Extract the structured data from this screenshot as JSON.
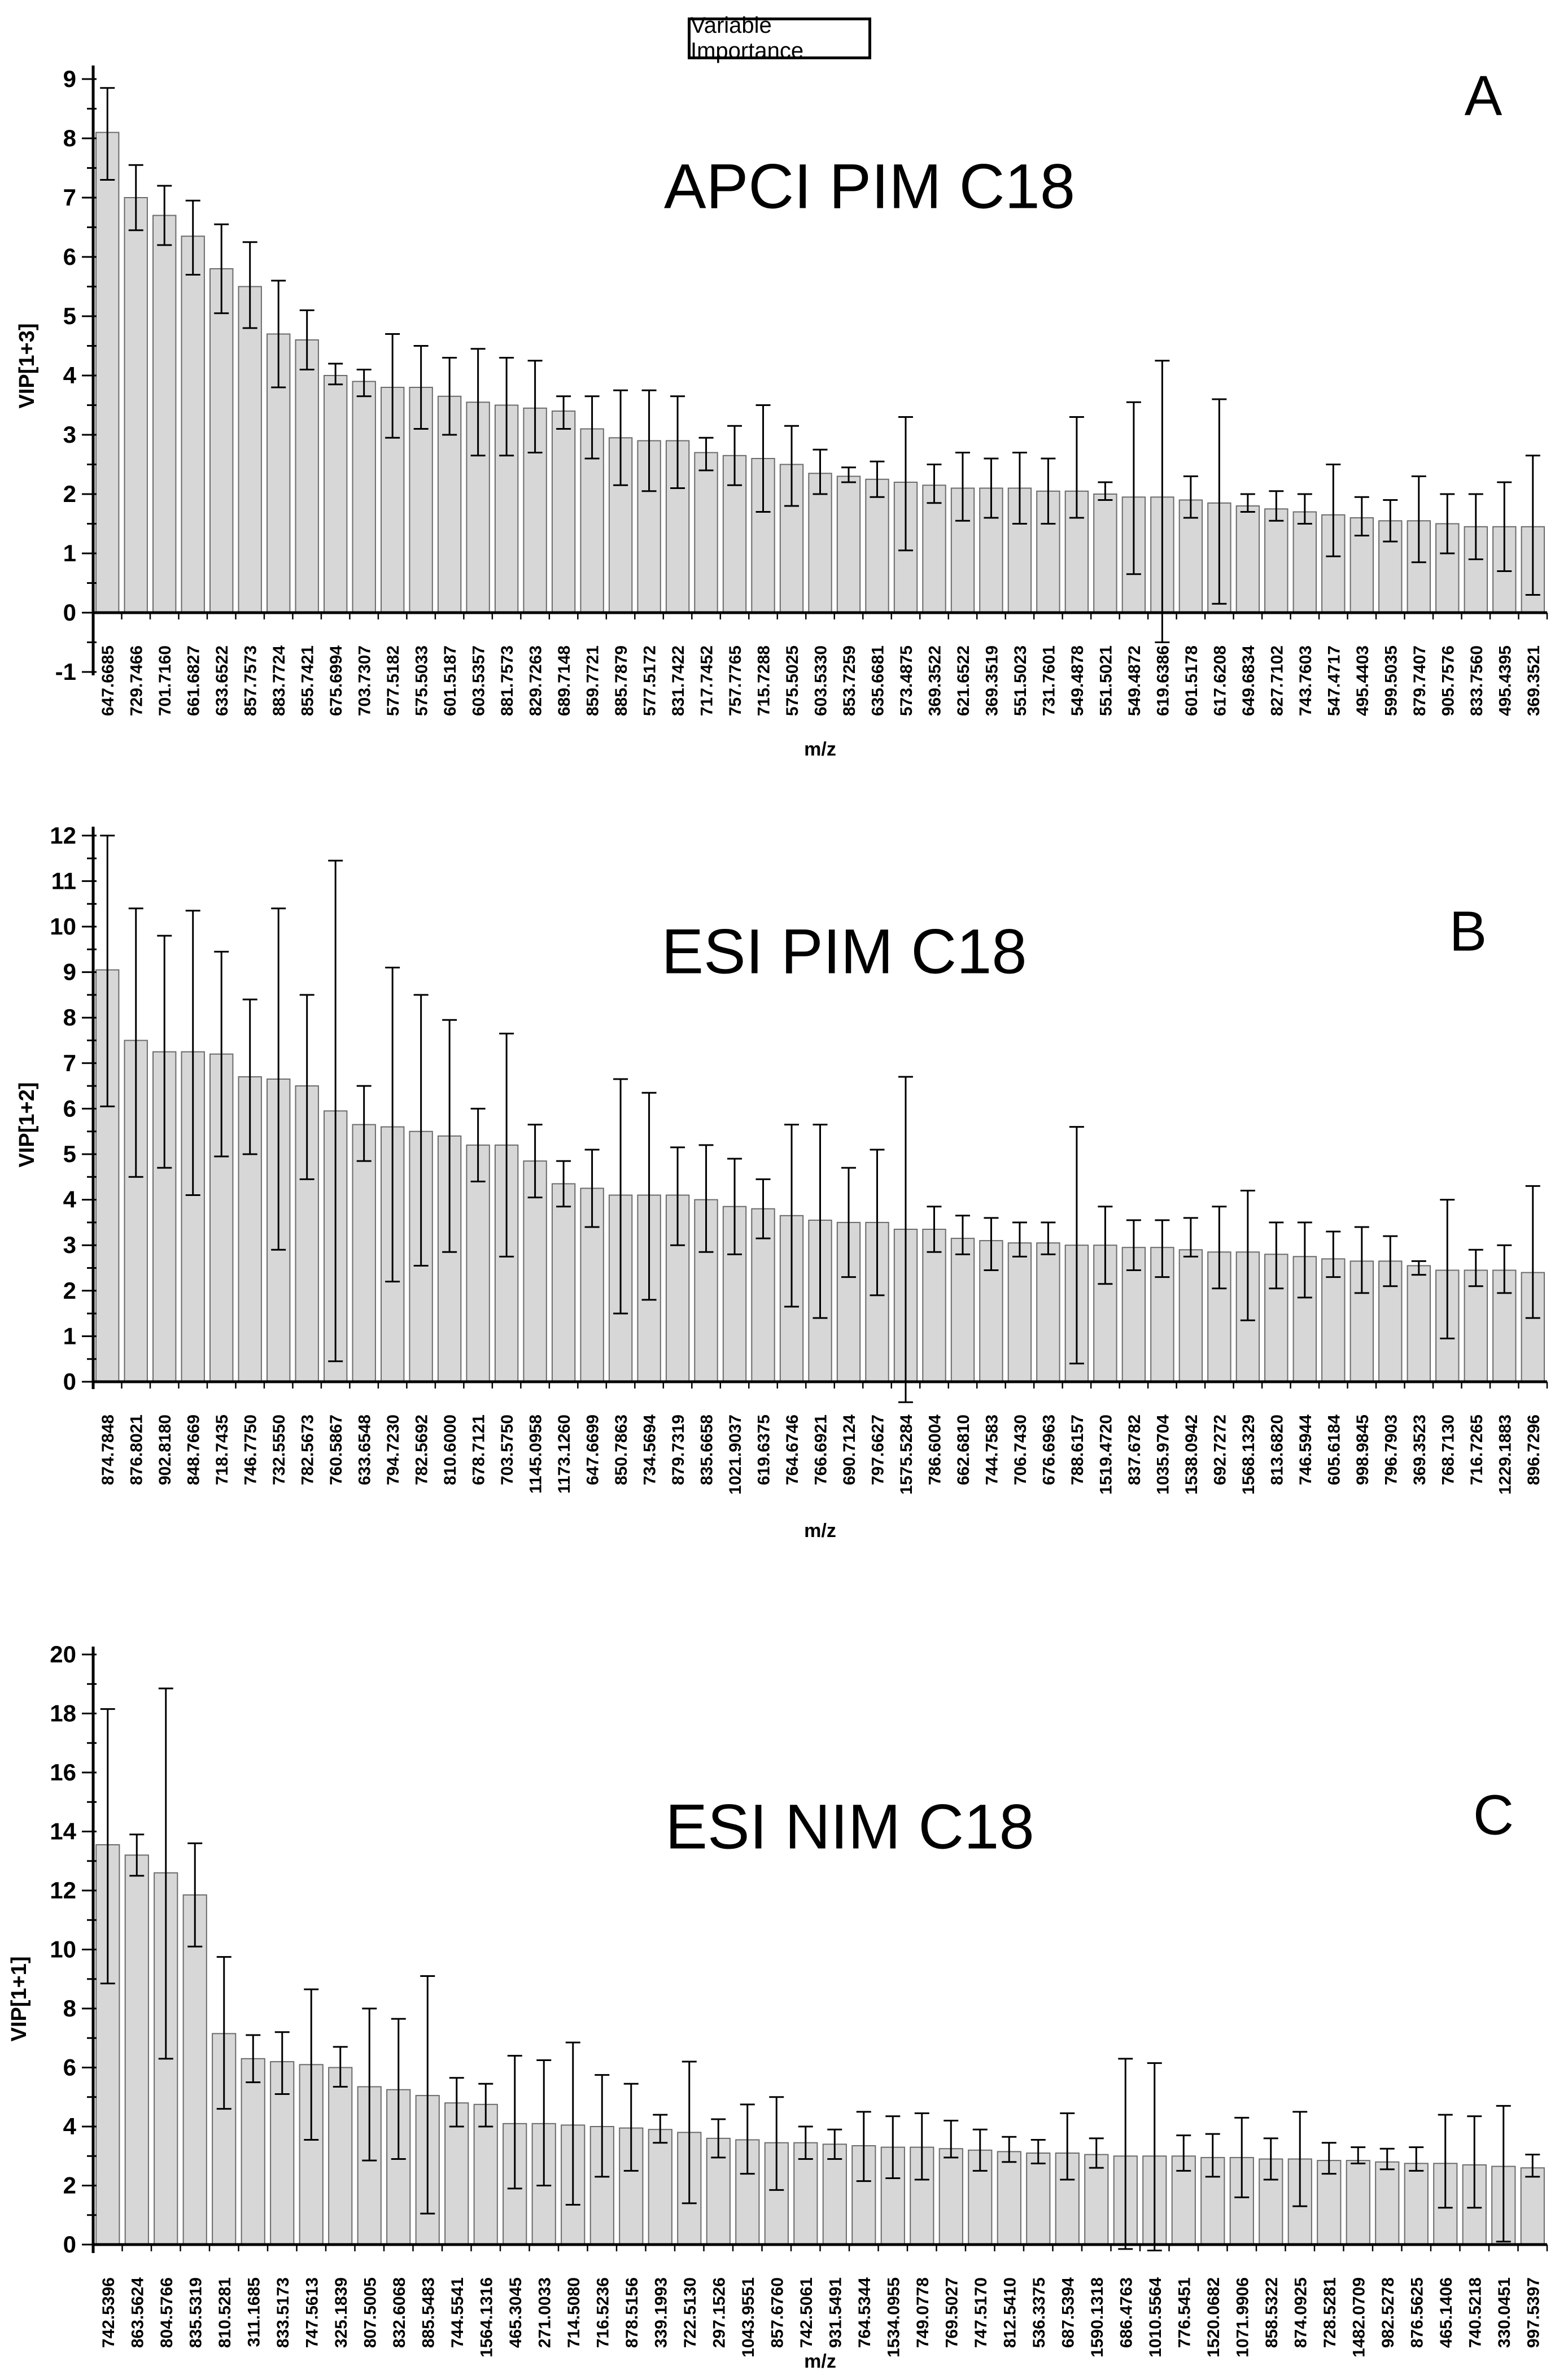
{
  "figure": {
    "title_box": "Variable Importance",
    "xlabel": "m/z",
    "bar_fill": "#d7d7d7",
    "bar_stroke": "#6b6b6b",
    "axis_color": "#000000"
  },
  "chart_data": [
    {
      "type": "bar",
      "panel": "A",
      "title": "APCI PIM C18",
      "ylabel": "VIP[1+3]",
      "xlabel": "m/z",
      "ylim": [
        -1,
        9
      ],
      "grid": false,
      "categories": [
        "647.6685",
        "729.7466",
        "701.7160",
        "661.6827",
        "633.6522",
        "857.7573",
        "883.7724",
        "855.7421",
        "675.6994",
        "703.7307",
        "577.5182",
        "575.5033",
        "601.5187",
        "603.5357",
        "881.7573",
        "829.7263",
        "689.7148",
        "859.7721",
        "885.7879",
        "577.5172",
        "831.7422",
        "717.7452",
        "757.7765",
        "715.7288",
        "575.5025",
        "603.5330",
        "853.7259",
        "635.6681",
        "573.4875",
        "369.3522",
        "621.6522",
        "369.3519",
        "551.5023",
        "731.7601",
        "549.4878",
        "551.5021",
        "549.4872",
        "619.6386",
        "601.5178",
        "617.6208",
        "649.6834",
        "827.7102",
        "743.7603",
        "547.4717",
        "495.4403",
        "599.5035",
        "879.7407",
        "905.7576",
        "833.7560",
        "495.4395",
        "369.3521"
      ],
      "values": [
        8.1,
        7.0,
        6.7,
        6.35,
        5.8,
        5.5,
        4.7,
        4.6,
        4.0,
        3.9,
        3.8,
        3.8,
        3.65,
        3.55,
        3.5,
        3.45,
        3.4,
        3.1,
        2.95,
        2.9,
        2.9,
        2.7,
        2.65,
        2.6,
        2.5,
        2.35,
        2.3,
        2.25,
        2.2,
        2.15,
        2.1,
        2.1,
        2.1,
        2.05,
        2.05,
        2.0,
        1.95,
        1.95,
        1.9,
        1.85,
        1.8,
        1.75,
        1.7,
        1.65,
        1.6,
        1.55,
        1.55,
        1.5,
        1.45,
        1.45,
        1.45
      ],
      "err_lo": [
        7.3,
        6.45,
        6.2,
        5.7,
        5.05,
        4.8,
        3.8,
        4.1,
        3.85,
        3.65,
        2.95,
        3.1,
        3.0,
        2.65,
        2.65,
        2.7,
        3.1,
        2.6,
        2.15,
        2.05,
        2.1,
        2.4,
        2.15,
        1.7,
        1.8,
        2.0,
        2.2,
        1.95,
        1.05,
        1.85,
        1.55,
        1.6,
        1.5,
        1.5,
        1.6,
        1.9,
        0.65,
        -0.5,
        1.6,
        0.15,
        1.7,
        1.55,
        1.5,
        0.95,
        1.3,
        1.2,
        0.85,
        1.0,
        0.9,
        0.7,
        0.3
      ],
      "err_hi": [
        8.85,
        7.55,
        7.2,
        6.95,
        6.55,
        6.25,
        5.6,
        5.1,
        4.2,
        4.1,
        4.7,
        4.5,
        4.3,
        4.45,
        4.3,
        4.25,
        3.65,
        3.65,
        3.75,
        3.75,
        3.65,
        2.95,
        3.15,
        3.5,
        3.15,
        2.75,
        2.45,
        2.55,
        3.3,
        2.5,
        2.7,
        2.6,
        2.7,
        2.6,
        3.3,
        2.2,
        3.55,
        4.25,
        2.3,
        3.6,
        2.0,
        2.05,
        2.0,
        2.5,
        1.95,
        1.9,
        2.3,
        2.0,
        2.0,
        2.2,
        2.65
      ]
    },
    {
      "type": "bar",
      "panel": "B",
      "title": "ESI PIM C18",
      "ylabel": "VIP[1+2]",
      "xlabel": "m/z",
      "ylim": [
        0,
        12
      ],
      "grid": false,
      "categories": [
        "874.7848",
        "876.8021",
        "902.8180",
        "848.7669",
        "718.7435",
        "746.7750",
        "732.5550",
        "782.5673",
        "760.5867",
        "633.6548",
        "794.7230",
        "782.5692",
        "810.6000",
        "678.7121",
        "703.5750",
        "1145.0958",
        "1173.1260",
        "647.6699",
        "850.7863",
        "734.5694",
        "879.7319",
        "835.6658",
        "1021.9037",
        "619.6375",
        "764.6746",
        "766.6921",
        "690.7124",
        "797.6627",
        "1575.5284",
        "786.6004",
        "662.6810",
        "744.7583",
        "706.7430",
        "676.6963",
        "788.6157",
        "1519.4720",
        "837.6782",
        "1035.9704",
        "1538.0942",
        "692.7272",
        "1568.1329",
        "813.6820",
        "746.5944",
        "605.6184",
        "998.9845",
        "796.7903",
        "369.3523",
        "768.7130",
        "716.7265",
        "1229.1883",
        "896.7296"
      ],
      "values": [
        9.05,
        7.5,
        7.25,
        7.25,
        7.2,
        6.7,
        6.65,
        6.5,
        5.95,
        5.65,
        5.6,
        5.5,
        5.4,
        5.2,
        5.2,
        4.85,
        4.35,
        4.25,
        4.1,
        4.1,
        4.1,
        4.0,
        3.85,
        3.8,
        3.65,
        3.55,
        3.5,
        3.5,
        3.35,
        3.35,
        3.15,
        3.1,
        3.05,
        3.05,
        3.0,
        3.0,
        2.95,
        2.95,
        2.9,
        2.85,
        2.85,
        2.8,
        2.75,
        2.7,
        2.65,
        2.65,
        2.55,
        2.45,
        2.45,
        2.45,
        2.4
      ],
      "err_lo": [
        6.05,
        4.5,
        4.7,
        4.1,
        4.95,
        5.0,
        2.9,
        4.45,
        0.45,
        4.85,
        2.2,
        2.55,
        2.85,
        4.4,
        2.75,
        4.05,
        3.85,
        3.4,
        1.5,
        1.8,
        3.0,
        2.85,
        2.8,
        3.15,
        1.65,
        1.4,
        2.3,
        1.9,
        -0.45,
        2.85,
        2.8,
        2.45,
        2.75,
        2.8,
        0.4,
        2.15,
        2.45,
        2.3,
        2.75,
        2.05,
        1.35,
        2.05,
        1.85,
        2.3,
        1.95,
        2.1,
        2.35,
        0.95,
        2.1,
        1.95,
        1.4
      ],
      "err_hi": [
        12.0,
        10.4,
        9.8,
        10.35,
        9.45,
        8.4,
        10.4,
        8.5,
        11.45,
        6.5,
        9.1,
        8.5,
        7.95,
        6.0,
        7.65,
        5.65,
        4.85,
        5.1,
        6.65,
        6.35,
        5.15,
        5.2,
        4.9,
        4.45,
        5.65,
        5.65,
        4.7,
        5.1,
        6.7,
        3.85,
        3.65,
        3.6,
        3.5,
        3.5,
        5.6,
        3.85,
        3.55,
        3.55,
        3.6,
        3.85,
        4.2,
        3.5,
        3.5,
        3.3,
        3.4,
        3.2,
        2.65,
        4.0,
        2.9,
        3.0,
        4.3
      ]
    },
    {
      "type": "bar",
      "panel": "C",
      "title": "ESI NIM C18",
      "ylabel": "VIP[1+1]",
      "xlabel": "m/z",
      "ylim": [
        0,
        20
      ],
      "grid": false,
      "categories": [
        "742.5396",
        "863.5624",
        "804.5766",
        "835.5319",
        "810.5281",
        "311.1685",
        "833.5173",
        "747.5613",
        "325.1839",
        "807.5005",
        "832.6068",
        "885.5483",
        "744.5541",
        "1564.1316",
        "465.3045",
        "271.0033",
        "714.5080",
        "716.5236",
        "878.5156",
        "339.1993",
        "722.5130",
        "297.1526",
        "1043.9551",
        "857.6760",
        "742.5061",
        "931.5491",
        "764.5344",
        "1534.0955",
        "749.0778",
        "769.5027",
        "747.5170",
        "812.5410",
        "536.3375",
        "687.5394",
        "1590.1318",
        "686.4763",
        "1010.5564",
        "776.5451",
        "1520.0682",
        "1071.9906",
        "858.5322",
        "874.0925",
        "728.5281",
        "1482.0709",
        "982.5278",
        "876.5625",
        "465.1406",
        "740.5218",
        "330.0451",
        "997.5397"
      ],
      "values": [
        13.55,
        13.2,
        12.6,
        11.85,
        7.15,
        6.3,
        6.2,
        6.1,
        6.0,
        5.35,
        5.25,
        5.05,
        4.8,
        4.75,
        4.1,
        4.1,
        4.05,
        4.0,
        3.95,
        3.9,
        3.8,
        3.6,
        3.55,
        3.45,
        3.45,
        3.4,
        3.35,
        3.3,
        3.3,
        3.25,
        3.2,
        3.15,
        3.1,
        3.1,
        3.05,
        3.0,
        3.0,
        3.0,
        2.95,
        2.95,
        2.9,
        2.9,
        2.85,
        2.85,
        2.8,
        2.75,
        2.75,
        2.7,
        2.65,
        2.6
      ],
      "err_lo": [
        8.85,
        12.5,
        6.3,
        10.1,
        4.6,
        5.5,
        5.1,
        3.55,
        5.35,
        2.85,
        2.9,
        1.05,
        4.0,
        4.0,
        1.9,
        2.0,
        1.35,
        2.3,
        2.5,
        3.45,
        1.4,
        2.95,
        2.4,
        1.85,
        2.9,
        2.9,
        2.15,
        2.25,
        2.2,
        2.95,
        2.5,
        2.8,
        2.75,
        2.2,
        2.6,
        -0.15,
        -0.2,
        2.5,
        2.3,
        1.6,
        2.2,
        1.3,
        2.4,
        2.75,
        2.55,
        2.5,
        1.25,
        1.25,
        0.1,
        2.3
      ],
      "err_hi": [
        18.15,
        13.9,
        18.85,
        13.6,
        9.75,
        7.1,
        7.2,
        8.65,
        6.7,
        8.0,
        7.65,
        9.1,
        5.65,
        5.45,
        6.4,
        6.25,
        6.85,
        5.75,
        5.45,
        4.4,
        6.2,
        4.25,
        4.75,
        5.0,
        4.0,
        3.9,
        4.5,
        4.35,
        4.45,
        4.2,
        3.9,
        3.65,
        3.55,
        4.45,
        3.6,
        6.3,
        6.15,
        3.7,
        3.75,
        4.3,
        3.6,
        4.5,
        3.45,
        3.3,
        3.25,
        3.3,
        4.4,
        4.35,
        4.7,
        3.05
      ]
    }
  ]
}
